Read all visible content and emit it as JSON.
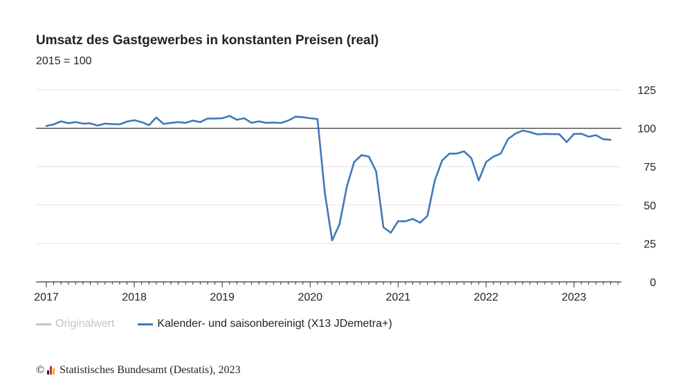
{
  "chart_data": {
    "type": "line",
    "title": "Umsatz des Gastgewerbes in konstanten Preisen (real)",
    "subtitle": "2015 = 100",
    "ylim": [
      0,
      125
    ],
    "yticks": [
      0,
      25,
      50,
      75,
      100,
      125
    ],
    "reference_line": 100,
    "x_start": "2017-01",
    "x_ticks": [
      "2017",
      "2018",
      "2019",
      "2020",
      "2021",
      "2022",
      "2023"
    ],
    "grid": true,
    "legend_position": "bottom-left",
    "series": [
      {
        "name": "Originalwert",
        "color": "#c4c4c4",
        "values": []
      },
      {
        "name": "Kalender- und saisonbereinigt (X13 JDemetra+)",
        "color": "#3f78b6",
        "values": [
          101.5,
          102.5,
          104.5,
          103.3,
          104,
          103,
          103.2,
          101.7,
          103,
          102.7,
          102.5,
          104.3,
          105.2,
          104,
          102,
          107,
          102.8,
          103.5,
          104,
          103.5,
          105,
          104,
          106.3,
          106.3,
          106.5,
          108,
          105.5,
          106.5,
          103.5,
          104.5,
          103.5,
          103.7,
          103.4,
          105,
          107.5,
          107.2,
          106.5,
          106,
          58,
          27,
          37.5,
          62,
          78,
          82.5,
          81.5,
          72,
          35.5,
          32,
          39.5,
          39.5,
          41,
          38.5,
          43,
          66,
          79,
          83.5,
          83.5,
          85,
          80.5,
          66,
          78,
          81.5,
          83.5,
          93,
          96.5,
          98.5,
          97.5,
          96,
          96.3,
          96.2,
          96.1,
          91,
          96.3,
          96.4,
          94.5,
          95.5,
          92.8,
          92.5
        ]
      }
    ]
  },
  "legend": {
    "items": [
      {
        "label": "Originalwert",
        "color": "#c4c4c4"
      },
      {
        "label": "Kalender- und saisonbereinigt (X13 JDemetra+)",
        "color": "#3f78b6"
      }
    ]
  },
  "footer": {
    "copyright_symbol": "©",
    "source": "Statistisches Bundesamt (Destatis), 2023",
    "logo_colors": [
      "#222222",
      "#d62b2b",
      "#f2b21c"
    ]
  }
}
